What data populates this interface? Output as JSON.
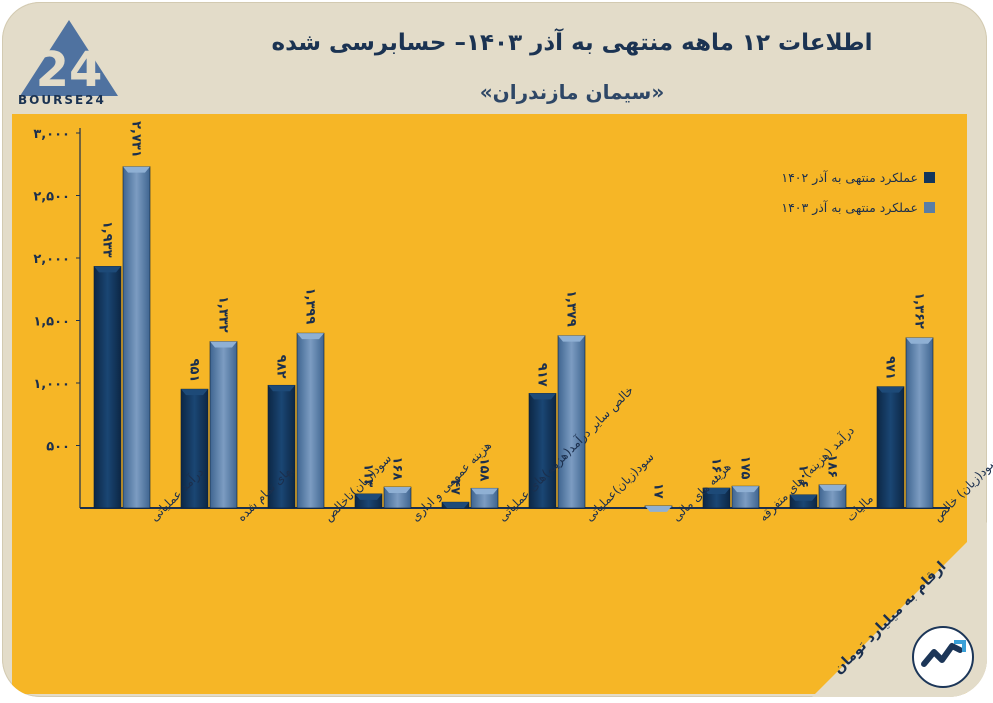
{
  "header": {
    "title": "اطلاعات ۱۲ ماهه منتهی به آذر ۱۴۰۳– حسابرسی شده",
    "subtitle": "«سیمان مازندران»"
  },
  "logo": {
    "text": "BOURSE24",
    "mark": "24"
  },
  "note": "ارقام به میلیارد تومان",
  "colors": {
    "series1": "#13365c",
    "series2": "#5a7ea6",
    "background": "#f6b626",
    "card": "#e3dcc9"
  },
  "chart_data": {
    "type": "bar",
    "categories": [
      "درآمد عملیاتی",
      "بهای تمام شده",
      "سود(زیان)ناخالص",
      "هزینه عمومی و اداری",
      "خالص سایر درآمد(هزینه)های عملیاتی",
      "سود(زیان)عملیاتی",
      "هزینه های مالی",
      "درآمد (هزینه) های متفرقه",
      "مالیات",
      "سود(زیان) خالص"
    ],
    "series": [
      {
        "name": "عملکرد منتهی به آذر ۱۴۰۲",
        "values": [
          1933,
          951,
          982,
          113,
          47,
          917,
          0,
          160,
          106,
          971
        ],
        "labels": [
          "۱,۹۳۳",
          "۹۵۱",
          "۹۸۲",
          "۱۱۳",
          "۴۷",
          "۹۱۷",
          "",
          "۱۶۰",
          "۱۰۶",
          "۹۷۱"
        ]
      },
      {
        "name": "عملکرد منتهی به آذر ۱۴۰۳",
        "values": [
          2731,
          1332,
          1399,
          168,
          158,
          1379,
          17,
          175,
          186,
          1362
        ],
        "labels": [
          "۲,۷۳۱",
          "۱,۳۳۲",
          "۱,۳۹۹",
          "۱۶۸",
          "۱۵۸",
          "۱,۳۷۹",
          "۱۷",
          "۱۷۵",
          "۱۸۶",
          "۱,۳۶۲"
        ]
      }
    ],
    "yticks": [
      500,
      1000,
      1500,
      2000,
      2500,
      3000
    ],
    "ytick_labels": [
      "۵۰۰",
      "۱,۰۰۰",
      "۱,۵۰۰",
      "۲,۰۰۰",
      "۲,۵۰۰",
      "۳,۰۰۰"
    ],
    "ylim": [
      0,
      3000
    ],
    "legend_position": "top-right",
    "grid": false
  }
}
